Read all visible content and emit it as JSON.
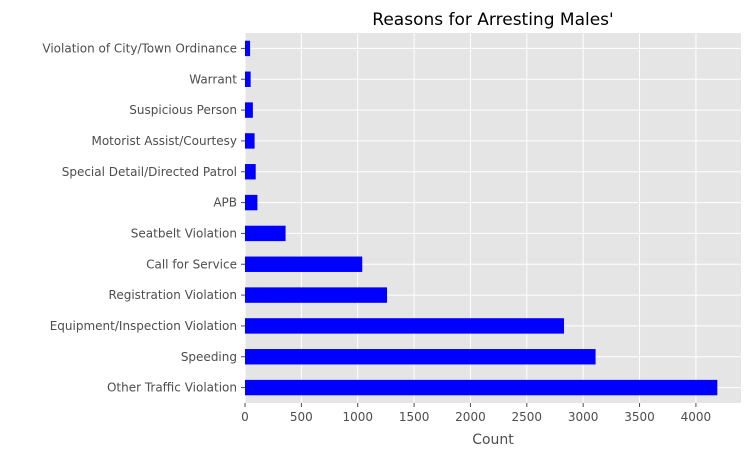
{
  "chart_data": {
    "type": "bar",
    "orientation": "horizontal",
    "title": "Reasons for Arresting Males'",
    "xlabel": "Count",
    "ylabel": "",
    "categories": [
      "Other Traffic Violation",
      "Speeding",
      "Equipment/Inspection Violation",
      "Registration Violation",
      "Call for Service",
      "Seatbelt Violation",
      "APB",
      "Special Detail/Directed Patrol",
      "Motorist Assist/Courtesy",
      "Suspicious Person",
      "Warrant",
      "Violation of City/Town Ordinance"
    ],
    "values": [
      4190,
      3110,
      2830,
      1260,
      1040,
      360,
      110,
      95,
      85,
      70,
      50,
      45
    ],
    "xlim": [
      0,
      4400
    ],
    "xticks": [
      0,
      500,
      1000,
      1500,
      2000,
      2500,
      3000,
      3500,
      4000
    ],
    "grid": true,
    "legend": "none",
    "colors": {
      "bar": "#0000ff",
      "background": "#e5e5e5",
      "grid": "#ffffff"
    }
  }
}
